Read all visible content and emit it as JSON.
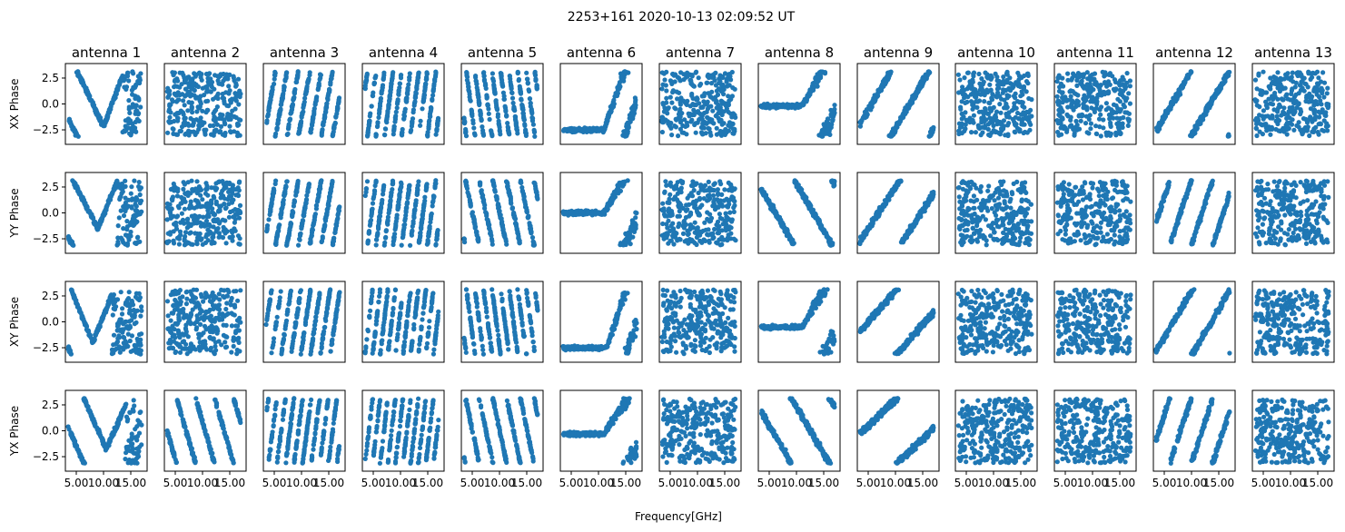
{
  "chart_data": {
    "type": "scatter",
    "title": "2253+161 2020-10-13 02:09:52 UT",
    "xlabel": "Frequency[GHz]",
    "grid": false,
    "legend": "none",
    "marker_color": "#1f77b4",
    "xlim": [
      3.0,
      18.0
    ],
    "ylim": [
      -3.9,
      3.9
    ],
    "x_ticks": [
      5.0,
      10.0,
      15.0
    ],
    "x_tick_labels": [
      "5.00",
      "10.00",
      "15.00"
    ],
    "y_ticks": [
      2.5,
      0.0,
      -2.5
    ],
    "y_tick_labels": [
      "2.5",
      "0.0",
      "−2.5"
    ],
    "columns": [
      "antenna 1",
      "antenna 2",
      "antenna 3",
      "antenna 4",
      "antenna 5",
      "antenna 6",
      "antenna 7",
      "antenna 8",
      "antenna 9",
      "antenna 10",
      "antenna 11",
      "antenna 12",
      "antenna 13"
    ],
    "rows": [
      "XX Phase",
      "YY Phase",
      "XY Phase",
      "YX Phase"
    ],
    "patterns": [
      [
        {
          "k": "vee",
          "a": -2.2,
          "p": 10.0,
          "s": -1.1,
          "t": 1.4
        },
        {
          "k": "rand"
        },
        {
          "k": "wrap",
          "s": 3.0
        },
        {
          "k": "wrap",
          "s": 4.0
        },
        {
          "k": "wrap",
          "s": -4.0
        },
        {
          "k": "flat",
          "a": -2.5,
          "p": 11.0,
          "s": 1.5
        },
        {
          "k": "rand"
        },
        {
          "k": "flat",
          "a": -0.2,
          "p": 11.0,
          "s": 0.9
        },
        {
          "k": "lin",
          "a": 1.2,
          "s": 0.9
        },
        {
          "k": "rand"
        },
        {
          "k": "rand"
        },
        {
          "k": "lin",
          "a": -5.8,
          "s": 0.9
        },
        {
          "k": "rand"
        }
      ],
      [
        {
          "k": "vee",
          "a": -1.5,
          "p": 9.0,
          "s": -1.0,
          "t": 1.3
        },
        {
          "k": "rand"
        },
        {
          "k": "wrap",
          "s": 3.0
        },
        {
          "k": "wrap",
          "s": 4.0
        },
        {
          "k": "wrap",
          "s": -2.5
        },
        {
          "k": "flat",
          "a": 0.0,
          "p": 11.0,
          "s": 0.9
        },
        {
          "k": "rand"
        },
        {
          "k": "lin",
          "a": 5.5,
          "s": -0.9
        },
        {
          "k": "lin",
          "a": -5.5,
          "s": 0.8
        },
        {
          "k": "rand"
        },
        {
          "k": "rand"
        },
        {
          "k": "lin",
          "a": -6.5,
          "s": 1.6
        },
        {
          "k": "rand"
        }
      ],
      [
        {
          "k": "vee",
          "a": -2.0,
          "p": 8.0,
          "s": -1.3,
          "t": 1.3
        },
        {
          "k": "rand"
        },
        {
          "k": "wrap",
          "s": 3.5
        },
        {
          "k": "wrap",
          "s": 4.5
        },
        {
          "k": "wrap",
          "s": -4.0
        },
        {
          "k": "flat",
          "a": -2.5,
          "p": 11.5,
          "s": 1.6
        },
        {
          "k": "rand"
        },
        {
          "k": "flat",
          "a": -0.5,
          "p": 11.0,
          "s": 0.9
        },
        {
          "k": "lin",
          "a": -3.0,
          "s": 0.6
        },
        {
          "k": "rand"
        },
        {
          "k": "rand"
        },
        {
          "k": "lin",
          "a": -6.0,
          "s": 0.9
        },
        {
          "k": "rand"
        }
      ],
      [
        {
          "k": "vee",
          "a": -1.8,
          "p": 10.5,
          "s": -1.2,
          "t": 1.2
        },
        {
          "k": "wrap",
          "s": -1.8
        },
        {
          "k": "wrap",
          "s": 4.0
        },
        {
          "k": "wrap",
          "s": 4.5
        },
        {
          "k": "wrap",
          "s": -2.5
        },
        {
          "k": "flat",
          "a": -0.3,
          "p": 11.0,
          "s": 0.8
        },
        {
          "k": "rand"
        },
        {
          "k": "lin",
          "a": 5.0,
          "s": -0.9
        },
        {
          "k": "lin",
          "a": -2.0,
          "s": 0.5
        },
        {
          "k": "rand"
        },
        {
          "k": "rand"
        },
        {
          "k": "lin",
          "a": -6.5,
          "s": 1.6
        },
        {
          "k": "rand"
        }
      ]
    ]
  }
}
